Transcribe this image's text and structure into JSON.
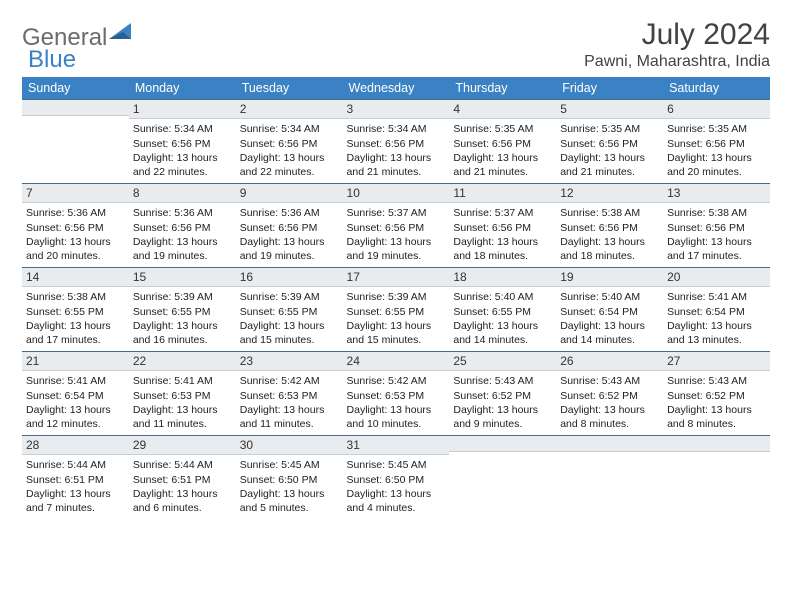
{
  "logo": {
    "general": "General",
    "blue": "Blue"
  },
  "title": "July 2024",
  "location": "Pawni, Maharashtra, India",
  "colors": {
    "header_bg": "#3b82c4",
    "daynum_bg": "#e9ecef",
    "daynum_border_top": "#4a6a8a",
    "text": "#222222",
    "logo_gray": "#6b6b6b",
    "logo_blue": "#3b82c4"
  },
  "day_headers": [
    "Sunday",
    "Monday",
    "Tuesday",
    "Wednesday",
    "Thursday",
    "Friday",
    "Saturday"
  ],
  "weeks": [
    [
      {
        "n": "",
        "sr": "",
        "ss": "",
        "dl": ""
      },
      {
        "n": "1",
        "sr": "5:34 AM",
        "ss": "6:56 PM",
        "dl": "13 hours and 22 minutes."
      },
      {
        "n": "2",
        "sr": "5:34 AM",
        "ss": "6:56 PM",
        "dl": "13 hours and 22 minutes."
      },
      {
        "n": "3",
        "sr": "5:34 AM",
        "ss": "6:56 PM",
        "dl": "13 hours and 21 minutes."
      },
      {
        "n": "4",
        "sr": "5:35 AM",
        "ss": "6:56 PM",
        "dl": "13 hours and 21 minutes."
      },
      {
        "n": "5",
        "sr": "5:35 AM",
        "ss": "6:56 PM",
        "dl": "13 hours and 21 minutes."
      },
      {
        "n": "6",
        "sr": "5:35 AM",
        "ss": "6:56 PM",
        "dl": "13 hours and 20 minutes."
      }
    ],
    [
      {
        "n": "7",
        "sr": "5:36 AM",
        "ss": "6:56 PM",
        "dl": "13 hours and 20 minutes."
      },
      {
        "n": "8",
        "sr": "5:36 AM",
        "ss": "6:56 PM",
        "dl": "13 hours and 19 minutes."
      },
      {
        "n": "9",
        "sr": "5:36 AM",
        "ss": "6:56 PM",
        "dl": "13 hours and 19 minutes."
      },
      {
        "n": "10",
        "sr": "5:37 AM",
        "ss": "6:56 PM",
        "dl": "13 hours and 19 minutes."
      },
      {
        "n": "11",
        "sr": "5:37 AM",
        "ss": "6:56 PM",
        "dl": "13 hours and 18 minutes."
      },
      {
        "n": "12",
        "sr": "5:38 AM",
        "ss": "6:56 PM",
        "dl": "13 hours and 18 minutes."
      },
      {
        "n": "13",
        "sr": "5:38 AM",
        "ss": "6:56 PM",
        "dl": "13 hours and 17 minutes."
      }
    ],
    [
      {
        "n": "14",
        "sr": "5:38 AM",
        "ss": "6:55 PM",
        "dl": "13 hours and 17 minutes."
      },
      {
        "n": "15",
        "sr": "5:39 AM",
        "ss": "6:55 PM",
        "dl": "13 hours and 16 minutes."
      },
      {
        "n": "16",
        "sr": "5:39 AM",
        "ss": "6:55 PM",
        "dl": "13 hours and 15 minutes."
      },
      {
        "n": "17",
        "sr": "5:39 AM",
        "ss": "6:55 PM",
        "dl": "13 hours and 15 minutes."
      },
      {
        "n": "18",
        "sr": "5:40 AM",
        "ss": "6:55 PM",
        "dl": "13 hours and 14 minutes."
      },
      {
        "n": "19",
        "sr": "5:40 AM",
        "ss": "6:54 PM",
        "dl": "13 hours and 14 minutes."
      },
      {
        "n": "20",
        "sr": "5:41 AM",
        "ss": "6:54 PM",
        "dl": "13 hours and 13 minutes."
      }
    ],
    [
      {
        "n": "21",
        "sr": "5:41 AM",
        "ss": "6:54 PM",
        "dl": "13 hours and 12 minutes."
      },
      {
        "n": "22",
        "sr": "5:41 AM",
        "ss": "6:53 PM",
        "dl": "13 hours and 11 minutes."
      },
      {
        "n": "23",
        "sr": "5:42 AM",
        "ss": "6:53 PM",
        "dl": "13 hours and 11 minutes."
      },
      {
        "n": "24",
        "sr": "5:42 AM",
        "ss": "6:53 PM",
        "dl": "13 hours and 10 minutes."
      },
      {
        "n": "25",
        "sr": "5:43 AM",
        "ss": "6:52 PM",
        "dl": "13 hours and 9 minutes."
      },
      {
        "n": "26",
        "sr": "5:43 AM",
        "ss": "6:52 PM",
        "dl": "13 hours and 8 minutes."
      },
      {
        "n": "27",
        "sr": "5:43 AM",
        "ss": "6:52 PM",
        "dl": "13 hours and 8 minutes."
      }
    ],
    [
      {
        "n": "28",
        "sr": "5:44 AM",
        "ss": "6:51 PM",
        "dl": "13 hours and 7 minutes."
      },
      {
        "n": "29",
        "sr": "5:44 AM",
        "ss": "6:51 PM",
        "dl": "13 hours and 6 minutes."
      },
      {
        "n": "30",
        "sr": "5:45 AM",
        "ss": "6:50 PM",
        "dl": "13 hours and 5 minutes."
      },
      {
        "n": "31",
        "sr": "5:45 AM",
        "ss": "6:50 PM",
        "dl": "13 hours and 4 minutes."
      },
      {
        "n": "",
        "sr": "",
        "ss": "",
        "dl": ""
      },
      {
        "n": "",
        "sr": "",
        "ss": "",
        "dl": ""
      },
      {
        "n": "",
        "sr": "",
        "ss": "",
        "dl": ""
      }
    ]
  ],
  "labels": {
    "sunrise": "Sunrise:",
    "sunset": "Sunset:",
    "daylight": "Daylight:"
  }
}
